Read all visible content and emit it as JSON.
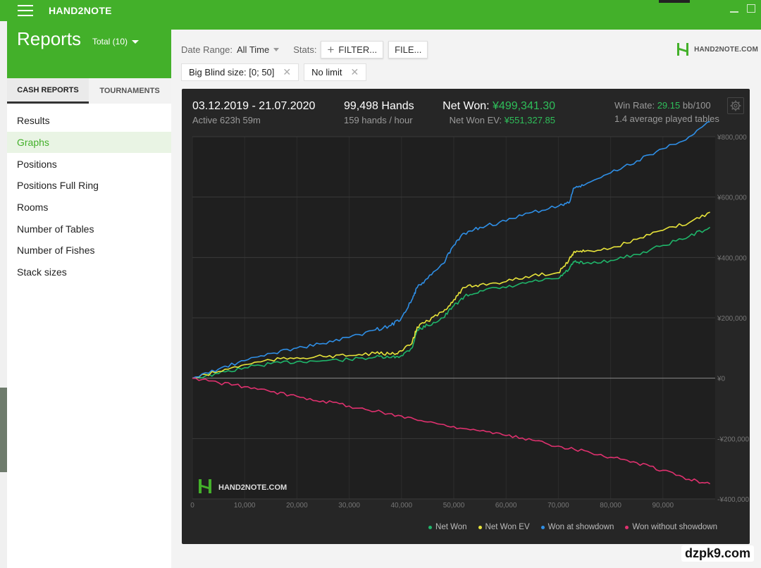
{
  "app": {
    "title": "HAND2NOTE"
  },
  "sidebar": {
    "title": "Reports",
    "total_label": "Total (10)",
    "tabs": [
      {
        "label": "CASH REPORTS"
      },
      {
        "label": "TOURNAMENTS"
      }
    ],
    "items": [
      {
        "label": "Results"
      },
      {
        "label": "Graphs"
      },
      {
        "label": "Positions"
      },
      {
        "label": "Positions Full Ring"
      },
      {
        "label": "Rooms"
      },
      {
        "label": "Number of Tables"
      },
      {
        "label": "Number of Fishes"
      },
      {
        "label": "Stack sizes"
      }
    ]
  },
  "filters": {
    "date_range_label": "Date Range:",
    "date_range_value": "All Time",
    "stats_label": "Stats:",
    "filter_button": "FILTER...",
    "file_button": "FILE...",
    "chips": [
      {
        "label": "Big Blind size: [0; 50]"
      },
      {
        "label": "No limit"
      }
    ]
  },
  "brand": {
    "text": "HAND2NOTE.COM"
  },
  "summary": {
    "date_range": "03.12.2019 - 21.07.2020",
    "active": "Active 623h 59m",
    "hands": "99,498 Hands",
    "hands_per_hour": "159 hands / hour",
    "net_won_label": "Net Won:",
    "net_won_value": "¥499,341.30",
    "net_won_ev_label": "Net Won  EV:",
    "net_won_ev_value": "¥551,327.85",
    "win_rate_label": "Win Rate:",
    "win_rate_value": "29.15",
    "win_rate_unit": "bb/100",
    "avg_tables": "1.4 average played tables"
  },
  "chart_logo_text": "HAND2NOTE.COM",
  "colors": {
    "accent": "#43b02a",
    "net_won": "#1fb56a",
    "net_won_ev": "#e8e43a",
    "showdown": "#2f8fe6",
    "non_showdown": "#e0316f"
  },
  "chart_data": {
    "type": "line",
    "xlim": [
      0,
      100000
    ],
    "ylim": [
      -400000,
      800000
    ],
    "x_ticks": [
      0,
      10000,
      20000,
      30000,
      40000,
      50000,
      60000,
      70000,
      80000,
      90000
    ],
    "x_tick_labels": [
      "0",
      "10,000",
      "20,000",
      "30,000",
      "40,000",
      "50,000",
      "60,000",
      "70,000",
      "80,000",
      "90,000"
    ],
    "y_ticks": [
      800000,
      600000,
      400000,
      200000,
      0,
      -200000,
      -400000
    ],
    "y_tick_labels": [
      "¥800,000",
      "¥600,000",
      "¥400,000",
      "¥200,000",
      "¥0",
      "-¥200,000",
      "-¥400,000"
    ],
    "series": [
      {
        "name": "Net Won",
        "color": "#1fb56a",
        "x": [
          0,
          5000,
          10000,
          15000,
          20000,
          25000,
          30000,
          35000,
          38000,
          40000,
          42000,
          43000,
          45000,
          48000,
          50000,
          52000,
          55000,
          60000,
          65000,
          70000,
          72000,
          73000,
          75000,
          80000,
          85000,
          90000,
          95000,
          99000
        ],
        "y": [
          0,
          15000,
          35000,
          48000,
          55000,
          58000,
          62000,
          70000,
          68000,
          75000,
          100000,
          160000,
          175000,
          200000,
          240000,
          270000,
          290000,
          300000,
          320000,
          330000,
          360000,
          385000,
          380000,
          390000,
          410000,
          440000,
          470000,
          500000
        ]
      },
      {
        "name": "Net Won  EV",
        "color": "#e8e43a",
        "x": [
          0,
          5000,
          10000,
          15000,
          20000,
          25000,
          30000,
          35000,
          38000,
          40000,
          42000,
          43000,
          45000,
          48000,
          50000,
          52000,
          55000,
          60000,
          65000,
          70000,
          72000,
          73000,
          75000,
          80000,
          85000,
          90000,
          95000,
          99000
        ],
        "y": [
          0,
          22000,
          45000,
          60000,
          68000,
          72000,
          75000,
          82000,
          80000,
          90000,
          115000,
          170000,
          190000,
          220000,
          260000,
          300000,
          310000,
          320000,
          340000,
          350000,
          390000,
          420000,
          420000,
          430000,
          460000,
          490000,
          515000,
          550000
        ]
      },
      {
        "name": "Won at showdown",
        "color": "#2f8fe6",
        "x": [
          0,
          5000,
          10000,
          15000,
          20000,
          25000,
          30000,
          35000,
          38000,
          40000,
          42000,
          43000,
          45000,
          48000,
          50000,
          52000,
          55000,
          60000,
          65000,
          70000,
          72000,
          73000,
          75000,
          80000,
          85000,
          90000,
          95000,
          99000
        ],
        "y": [
          0,
          30000,
          58000,
          82000,
          100000,
          115000,
          135000,
          160000,
          175000,
          200000,
          260000,
          300000,
          330000,
          380000,
          440000,
          480000,
          500000,
          520000,
          550000,
          570000,
          580000,
          630000,
          640000,
          680000,
          720000,
          760000,
          800000,
          850000
        ]
      },
      {
        "name": "Won without showdown",
        "color": "#e0316f",
        "x": [
          0,
          5000,
          10000,
          15000,
          20000,
          25000,
          30000,
          35000,
          40000,
          45000,
          50000,
          55000,
          60000,
          65000,
          70000,
          75000,
          80000,
          85000,
          90000,
          95000,
          99000
        ],
        "y": [
          0,
          -15000,
          -28000,
          -45000,
          -60000,
          -75000,
          -92000,
          -110000,
          -125000,
          -145000,
          -160000,
          -175000,
          -190000,
          -205000,
          -225000,
          -240000,
          -262000,
          -280000,
          -305000,
          -335000,
          -350000
        ]
      }
    ]
  }
}
